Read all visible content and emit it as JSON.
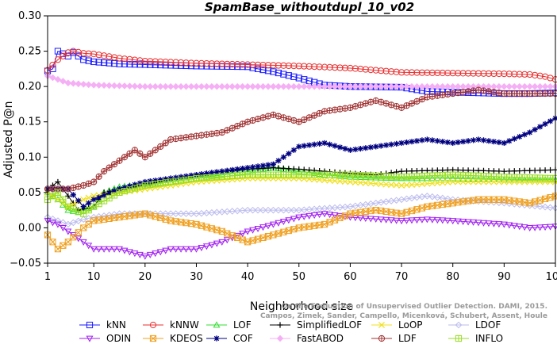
{
  "chart_data": {
    "type": "line",
    "title": "SpamBase_withoutdupl_10_v02",
    "xlabel": "Neighborhood size",
    "ylabel": "Adjusted P@n",
    "xlim": [
      1,
      100
    ],
    "ylim": [
      -0.05,
      0.3
    ],
    "x_ticks": [
      1,
      10,
      20,
      30,
      40,
      50,
      60,
      70,
      80,
      90,
      100
    ],
    "y_ticks": [
      -0.05,
      0.0,
      0.05,
      0.1,
      0.15,
      0.2,
      0.25,
      0.3
    ],
    "y_tick_labels": [
      "−0.05",
      "0.00",
      "0.05",
      "0.10",
      "0.15",
      "0.20",
      "0.25",
      "0.30"
    ],
    "grid": false,
    "legend_position": "bottom",
    "citation": [
      "Campos, Zimek, Sander, Campello, Micenková, Schubert, Assent, Houle",
      "On the Evaluation of Unsupervised Outlier Detection. DAMI, 2015."
    ],
    "series": [
      {
        "name": "kNN",
        "color": "#1a1aff",
        "marker": "square",
        "points": [
          [
            1,
            0.222
          ],
          [
            2,
            0.225
          ],
          [
            3,
            0.25
          ],
          [
            5,
            0.243
          ],
          [
            6,
            0.248
          ],
          [
            8,
            0.238
          ],
          [
            10,
            0.235
          ],
          [
            15,
            0.232
          ],
          [
            20,
            0.231
          ],
          [
            30,
            0.229
          ],
          [
            40,
            0.228
          ],
          [
            42,
            0.225
          ],
          [
            45,
            0.221
          ],
          [
            50,
            0.212
          ],
          [
            55,
            0.202
          ],
          [
            60,
            0.2
          ],
          [
            70,
            0.199
          ],
          [
            75,
            0.193
          ],
          [
            85,
            0.191
          ],
          [
            90,
            0.19
          ],
          [
            95,
            0.19
          ],
          [
            100,
            0.191
          ]
        ]
      },
      {
        "name": "kNNW",
        "color": "#e83030",
        "marker": "circle",
        "points": [
          [
            1,
            0.223
          ],
          [
            3,
            0.238
          ],
          [
            5,
            0.248
          ],
          [
            6,
            0.25
          ],
          [
            8,
            0.247
          ],
          [
            10,
            0.246
          ],
          [
            15,
            0.24
          ],
          [
            20,
            0.236
          ],
          [
            30,
            0.233
          ],
          [
            40,
            0.231
          ],
          [
            50,
            0.229
          ],
          [
            60,
            0.226
          ],
          [
            70,
            0.22
          ],
          [
            80,
            0.219
          ],
          [
            90,
            0.218
          ],
          [
            95,
            0.217
          ],
          [
            98,
            0.214
          ],
          [
            100,
            0.21
          ]
        ]
      },
      {
        "name": "LOF",
        "color": "#33dd33",
        "marker": "triangle",
        "points": [
          [
            1,
            0.05
          ],
          [
            3,
            0.04
          ],
          [
            5,
            0.025
          ],
          [
            7,
            0.022
          ],
          [
            10,
            0.03
          ],
          [
            12,
            0.05
          ],
          [
            15,
            0.058
          ],
          [
            20,
            0.062
          ],
          [
            25,
            0.065
          ],
          [
            30,
            0.07
          ],
          [
            35,
            0.075
          ],
          [
            40,
            0.08
          ],
          [
            45,
            0.085
          ],
          [
            50,
            0.08
          ],
          [
            55,
            0.075
          ],
          [
            60,
            0.072
          ],
          [
            70,
            0.07
          ],
          [
            80,
            0.07
          ],
          [
            90,
            0.068
          ],
          [
            100,
            0.068
          ]
        ]
      },
      {
        "name": "SimplifiedLOF",
        "color": "#000000",
        "marker": "plus",
        "points": [
          [
            1,
            0.055
          ],
          [
            3,
            0.065
          ],
          [
            5,
            0.045
          ],
          [
            7,
            0.025
          ],
          [
            10,
            0.03
          ],
          [
            12,
            0.05
          ],
          [
            15,
            0.055
          ],
          [
            20,
            0.06
          ],
          [
            25,
            0.07
          ],
          [
            30,
            0.075
          ],
          [
            35,
            0.08
          ],
          [
            40,
            0.083
          ],
          [
            45,
            0.085
          ],
          [
            50,
            0.083
          ],
          [
            55,
            0.08
          ],
          [
            60,
            0.077
          ],
          [
            65,
            0.075
          ],
          [
            70,
            0.08
          ],
          [
            80,
            0.082
          ],
          [
            90,
            0.08
          ],
          [
            100,
            0.082
          ]
        ]
      },
      {
        "name": "LoOP",
        "color": "#f0e020",
        "marker": "x",
        "points": [
          [
            1,
            0.05
          ],
          [
            3,
            0.04
          ],
          [
            5,
            0.03
          ],
          [
            8,
            0.04
          ],
          [
            10,
            0.045
          ],
          [
            15,
            0.05
          ],
          [
            20,
            0.055
          ],
          [
            25,
            0.06
          ],
          [
            30,
            0.065
          ],
          [
            40,
            0.07
          ],
          [
            50,
            0.07
          ],
          [
            60,
            0.065
          ],
          [
            70,
            0.06
          ],
          [
            80,
            0.065
          ],
          [
            90,
            0.065
          ],
          [
            100,
            0.065
          ]
        ]
      },
      {
        "name": "LDOF",
        "color": "#bbbbee",
        "marker": "diamond",
        "points": [
          [
            1,
            0.015
          ],
          [
            3,
            0.01
          ],
          [
            5,
            0.005
          ],
          [
            8,
            0.012
          ],
          [
            10,
            0.015
          ],
          [
            15,
            0.02
          ],
          [
            20,
            0.02
          ],
          [
            30,
            0.02
          ],
          [
            40,
            0.025
          ],
          [
            50,
            0.025
          ],
          [
            60,
            0.03
          ],
          [
            70,
            0.04
          ],
          [
            75,
            0.045
          ],
          [
            80,
            0.04
          ],
          [
            90,
            0.035
          ],
          [
            100,
            0.028
          ]
        ]
      },
      {
        "name": "ODIN",
        "color": "#a020f0",
        "marker": "triangle-down",
        "points": [
          [
            1,
            0.01
          ],
          [
            3,
            0.005
          ],
          [
            5,
            -0.005
          ],
          [
            8,
            -0.02
          ],
          [
            10,
            -0.03
          ],
          [
            15,
            -0.03
          ],
          [
            20,
            -0.04
          ],
          [
            25,
            -0.03
          ],
          [
            30,
            -0.03
          ],
          [
            35,
            -0.02
          ],
          [
            40,
            -0.005
          ],
          [
            45,
            0.005
          ],
          [
            50,
            0.015
          ],
          [
            55,
            0.02
          ],
          [
            60,
            0.015
          ],
          [
            70,
            0.01
          ],
          [
            75,
            0.012
          ],
          [
            80,
            0.01
          ],
          [
            90,
            0.005
          ],
          [
            95,
            0.0
          ],
          [
            100,
            0.002
          ]
        ]
      },
      {
        "name": "KDEOS",
        "color": "#f0a020",
        "marker": "square-x",
        "points": [
          [
            1,
            -0.01
          ],
          [
            3,
            -0.03
          ],
          [
            5,
            -0.02
          ],
          [
            8,
            0.0
          ],
          [
            10,
            0.01
          ],
          [
            15,
            0.015
          ],
          [
            20,
            0.02
          ],
          [
            25,
            0.01
          ],
          [
            30,
            0.005
          ],
          [
            35,
            -0.005
          ],
          [
            40,
            -0.02
          ],
          [
            45,
            -0.01
          ],
          [
            50,
            0.0
          ],
          [
            55,
            0.005
          ],
          [
            60,
            0.02
          ],
          [
            65,
            0.025
          ],
          [
            70,
            0.02
          ],
          [
            75,
            0.03
          ],
          [
            80,
            0.035
          ],
          [
            85,
            0.04
          ],
          [
            90,
            0.04
          ],
          [
            95,
            0.035
          ],
          [
            100,
            0.045
          ]
        ]
      },
      {
        "name": "COF",
        "color": "#000080",
        "marker": "star",
        "points": [
          [
            1,
            0.055
          ],
          [
            3,
            0.055
          ],
          [
            5,
            0.055
          ],
          [
            8,
            0.03
          ],
          [
            10,
            0.04
          ],
          [
            15,
            0.055
          ],
          [
            20,
            0.065
          ],
          [
            25,
            0.07
          ],
          [
            30,
            0.075
          ],
          [
            35,
            0.08
          ],
          [
            40,
            0.085
          ],
          [
            45,
            0.09
          ],
          [
            50,
            0.115
          ],
          [
            55,
            0.12
          ],
          [
            60,
            0.11
          ],
          [
            65,
            0.115
          ],
          [
            70,
            0.12
          ],
          [
            75,
            0.125
          ],
          [
            80,
            0.12
          ],
          [
            85,
            0.125
          ],
          [
            90,
            0.12
          ],
          [
            95,
            0.135
          ],
          [
            100,
            0.155
          ]
        ]
      },
      {
        "name": "FastABOD",
        "color": "#f5b0f5",
        "marker": "diamond-filled",
        "points": [
          [
            1,
            0.215
          ],
          [
            3,
            0.21
          ],
          [
            5,
            0.205
          ],
          [
            10,
            0.202
          ],
          [
            20,
            0.2
          ],
          [
            30,
            0.2
          ],
          [
            40,
            0.2
          ],
          [
            50,
            0.2
          ],
          [
            60,
            0.2
          ],
          [
            70,
            0.2
          ],
          [
            80,
            0.2
          ],
          [
            90,
            0.2
          ],
          [
            100,
            0.2
          ]
        ]
      },
      {
        "name": "LDF",
        "color": "#a03030",
        "marker": "circle-plus",
        "points": [
          [
            1,
            0.055
          ],
          [
            3,
            0.055
          ],
          [
            5,
            0.055
          ],
          [
            8,
            0.06
          ],
          [
            10,
            0.065
          ],
          [
            12,
            0.08
          ],
          [
            15,
            0.095
          ],
          [
            18,
            0.11
          ],
          [
            20,
            0.1
          ],
          [
            23,
            0.115
          ],
          [
            25,
            0.125
          ],
          [
            30,
            0.13
          ],
          [
            35,
            0.135
          ],
          [
            40,
            0.15
          ],
          [
            45,
            0.16
          ],
          [
            50,
            0.15
          ],
          [
            55,
            0.165
          ],
          [
            60,
            0.17
          ],
          [
            65,
            0.18
          ],
          [
            70,
            0.17
          ],
          [
            75,
            0.185
          ],
          [
            80,
            0.19
          ],
          [
            85,
            0.195
          ],
          [
            90,
            0.19
          ],
          [
            95,
            0.19
          ],
          [
            100,
            0.19
          ]
        ]
      },
      {
        "name": "INFLO",
        "color": "#99dd22",
        "marker": "square-cross",
        "points": [
          [
            1,
            0.04
          ],
          [
            3,
            0.05
          ],
          [
            5,
            0.03
          ],
          [
            8,
            0.02
          ],
          [
            10,
            0.03
          ],
          [
            15,
            0.05
          ],
          [
            20,
            0.06
          ],
          [
            25,
            0.065
          ],
          [
            30,
            0.07
          ],
          [
            40,
            0.075
          ],
          [
            50,
            0.075
          ],
          [
            60,
            0.075
          ],
          [
            70,
            0.072
          ],
          [
            80,
            0.075
          ],
          [
            90,
            0.072
          ],
          [
            100,
            0.07
          ]
        ]
      }
    ]
  }
}
